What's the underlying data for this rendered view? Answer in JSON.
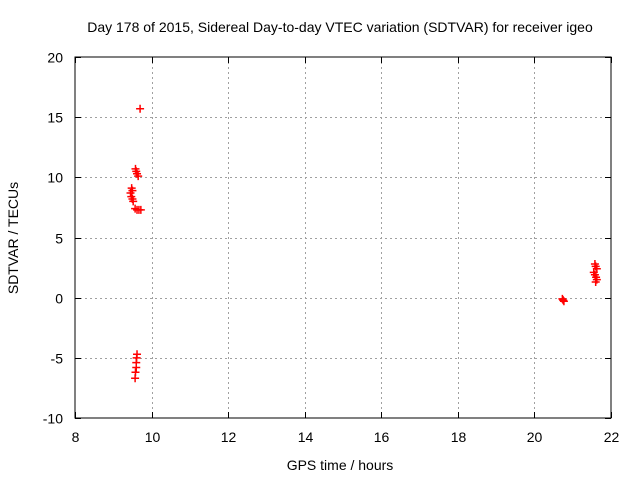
{
  "chart_data": {
    "type": "scatter",
    "title": "Day 178 of 2015, Sidereal Day-to-day VTEC variation (SDTVAR) for receiver igeo",
    "xlabel": "GPS time / hours",
    "ylabel": "SDTVAR / TECUs",
    "xlim": [
      8,
      22
    ],
    "ylim": [
      -10,
      20
    ],
    "xticks": [
      8,
      10,
      12,
      14,
      16,
      18,
      20,
      22
    ],
    "yticks": [
      -10,
      -5,
      0,
      5,
      10,
      15,
      20
    ],
    "grid": true,
    "marker": "+",
    "color": "#ff0000",
    "points": [
      {
        "x": 9.7,
        "y": 15.7
      },
      {
        "x": 9.58,
        "y": 10.7
      },
      {
        "x": 9.6,
        "y": 10.5
      },
      {
        "x": 9.62,
        "y": 10.3
      },
      {
        "x": 9.65,
        "y": 10.1
      },
      {
        "x": 9.48,
        "y": 9.1
      },
      {
        "x": 9.5,
        "y": 8.9
      },
      {
        "x": 9.45,
        "y": 8.7
      },
      {
        "x": 9.47,
        "y": 8.4
      },
      {
        "x": 9.5,
        "y": 8.2
      },
      {
        "x": 9.52,
        "y": 8.0
      },
      {
        "x": 9.57,
        "y": 7.4
      },
      {
        "x": 9.62,
        "y": 7.3
      },
      {
        "x": 9.67,
        "y": 7.3
      },
      {
        "x": 9.72,
        "y": 7.3
      },
      {
        "x": 9.62,
        "y": -4.7
      },
      {
        "x": 9.61,
        "y": -5.0
      },
      {
        "x": 9.6,
        "y": -5.4
      },
      {
        "x": 9.6,
        "y": -5.8
      },
      {
        "x": 9.58,
        "y": -6.2
      },
      {
        "x": 9.57,
        "y": -6.7
      },
      {
        "x": 20.73,
        "y": -0.1
      },
      {
        "x": 20.75,
        "y": -0.2
      },
      {
        "x": 20.77,
        "y": -0.3
      },
      {
        "x": 21.58,
        "y": 2.8
      },
      {
        "x": 21.6,
        "y": 2.6
      },
      {
        "x": 21.63,
        "y": 2.4
      },
      {
        "x": 21.55,
        "y": 2.1
      },
      {
        "x": 21.58,
        "y": 1.9
      },
      {
        "x": 21.61,
        "y": 1.7
      },
      {
        "x": 21.63,
        "y": 1.5
      },
      {
        "x": 21.6,
        "y": 1.3
      }
    ]
  }
}
